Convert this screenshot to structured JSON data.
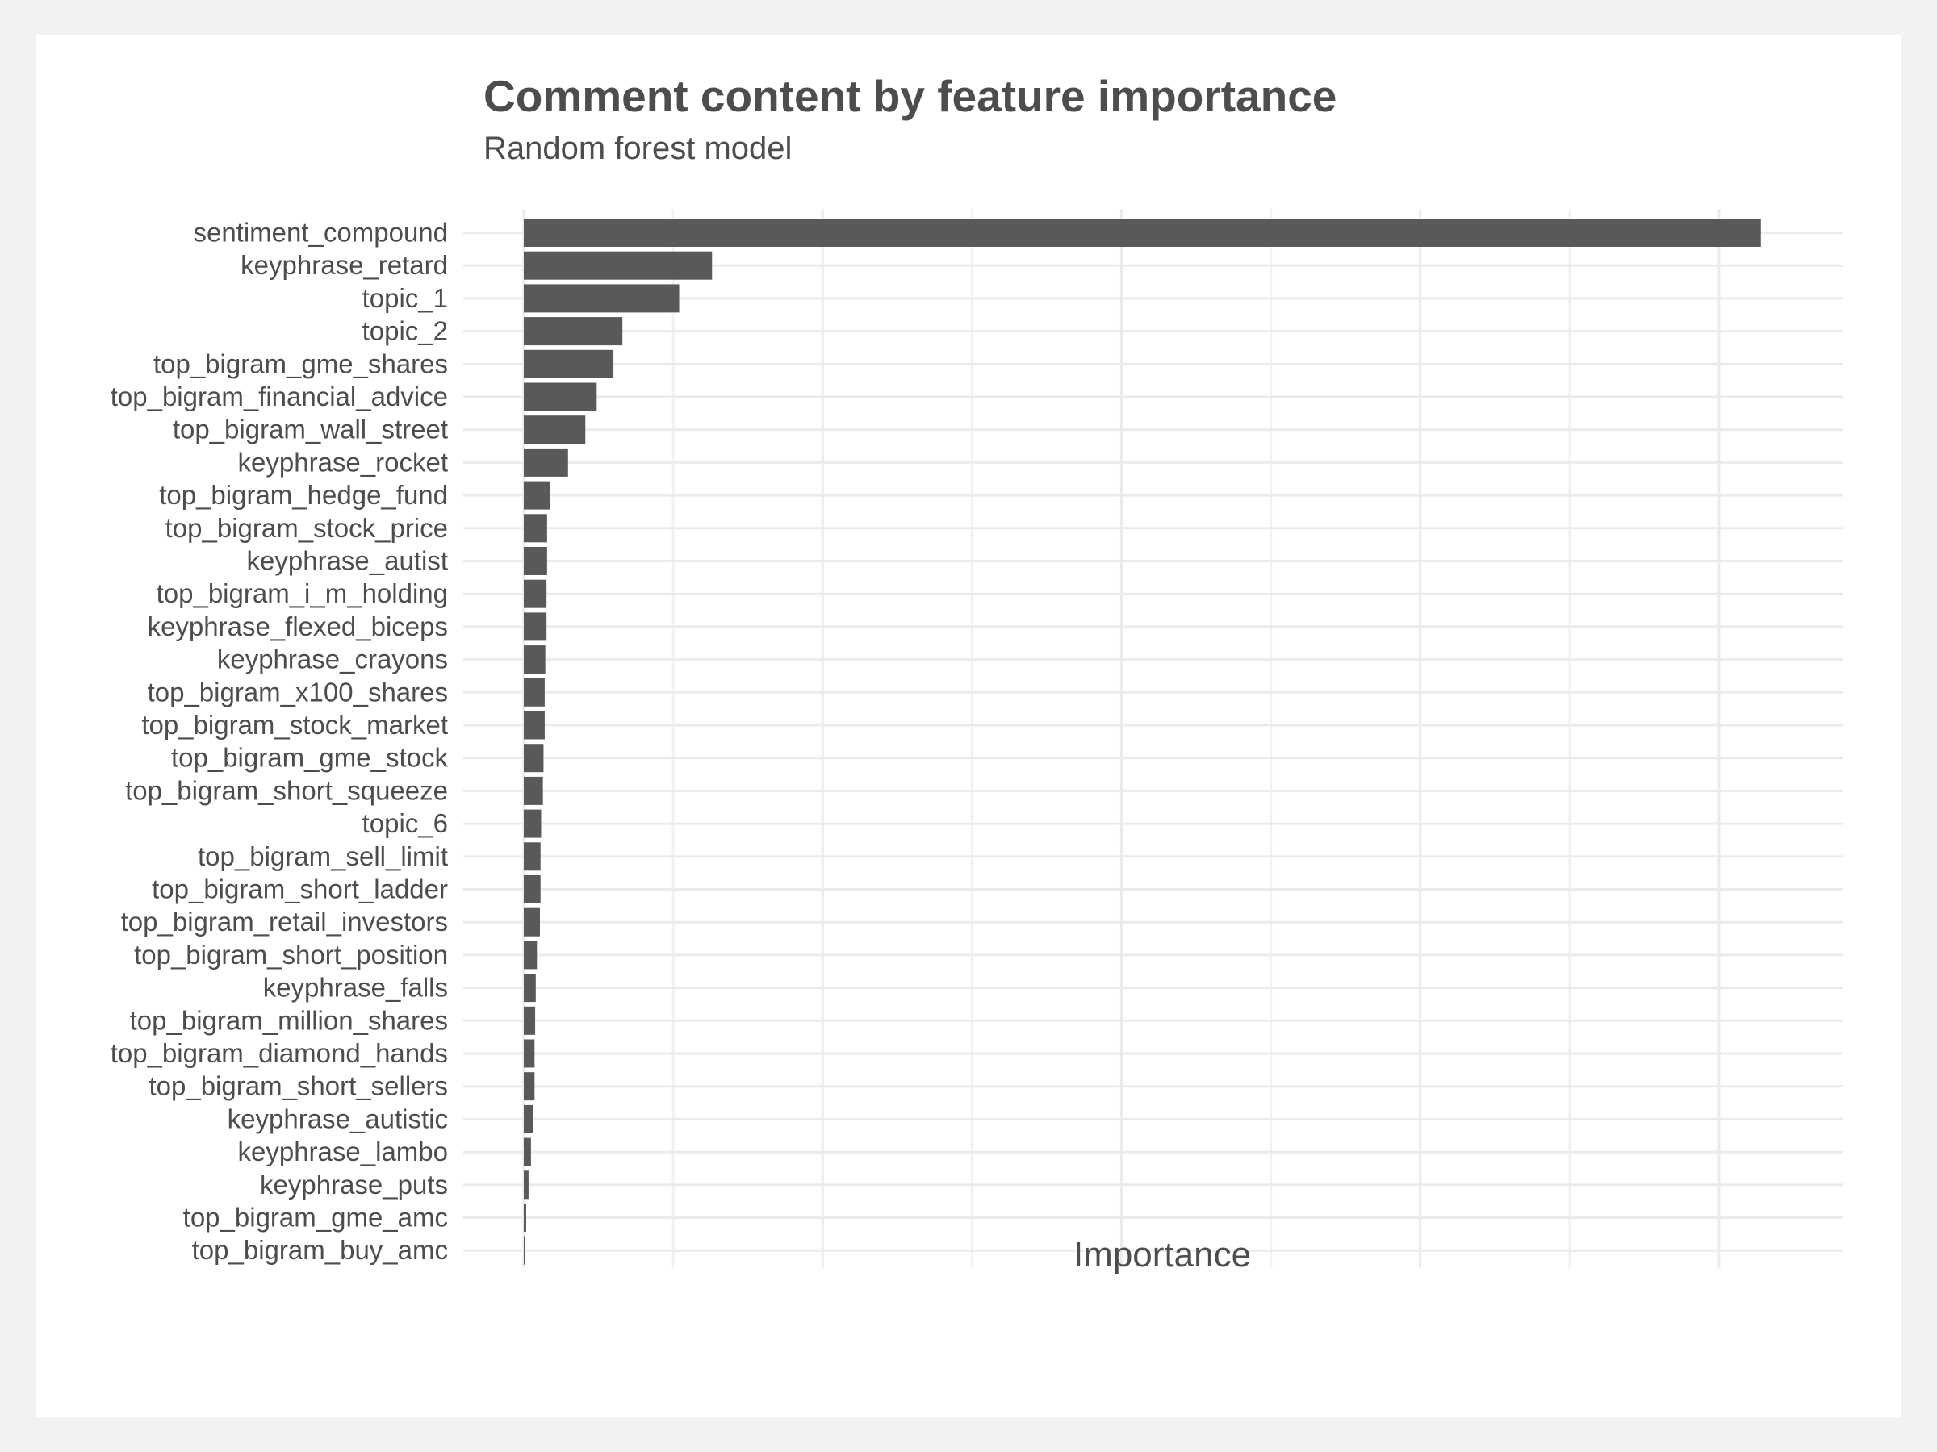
{
  "chart_data": {
    "type": "bar",
    "orientation": "horizontal",
    "title": "Comment content by feature importance",
    "subtitle": "Random forest model",
    "xlabel": "Importance",
    "ylabel": "",
    "xlim": [
      0,
      217
    ],
    "grid": true,
    "legend": "none",
    "bar_color": "#595959",
    "categories": [
      "sentiment_compound",
      "keyphrase_retard",
      "topic_1",
      "topic_2",
      "top_bigram_gme_shares",
      "top_bigram_financial_advice",
      "top_bigram_wall_street",
      "keyphrase_rocket",
      "top_bigram_hedge_fund",
      "top_bigram_stock_price",
      "keyphrase_autist",
      "top_bigram_i_m_holding",
      "keyphrase_flexed_biceps",
      "keyphrase_crayons",
      "top_bigram_x100_shares",
      "top_bigram_stock_market",
      "top_bigram_gme_stock",
      "top_bigram_short_squeeze",
      "topic_6",
      "top_bigram_sell_limit",
      "top_bigram_short_ladder",
      "top_bigram_retail_investors",
      "top_bigram_short_position",
      "keyphrase_falls",
      "top_bigram_million_shares",
      "top_bigram_diamond_hands",
      "top_bigram_short_sellers",
      "keyphrase_autistic",
      "keyphrase_lambo",
      "keyphrase_puts",
      "top_bigram_gme_amc",
      "top_bigram_buy_amc"
    ],
    "values": [
      207,
      31.5,
      26,
      16.5,
      15,
      12.2,
      10.3,
      7.4,
      4.4,
      3.9,
      3.9,
      3.8,
      3.8,
      3.6,
      3.5,
      3.5,
      3.3,
      3.2,
      2.9,
      2.8,
      2.8,
      2.7,
      2.2,
      2.0,
      1.9,
      1.8,
      1.8,
      1.6,
      1.2,
      0.8,
      0.4,
      0.2
    ]
  }
}
